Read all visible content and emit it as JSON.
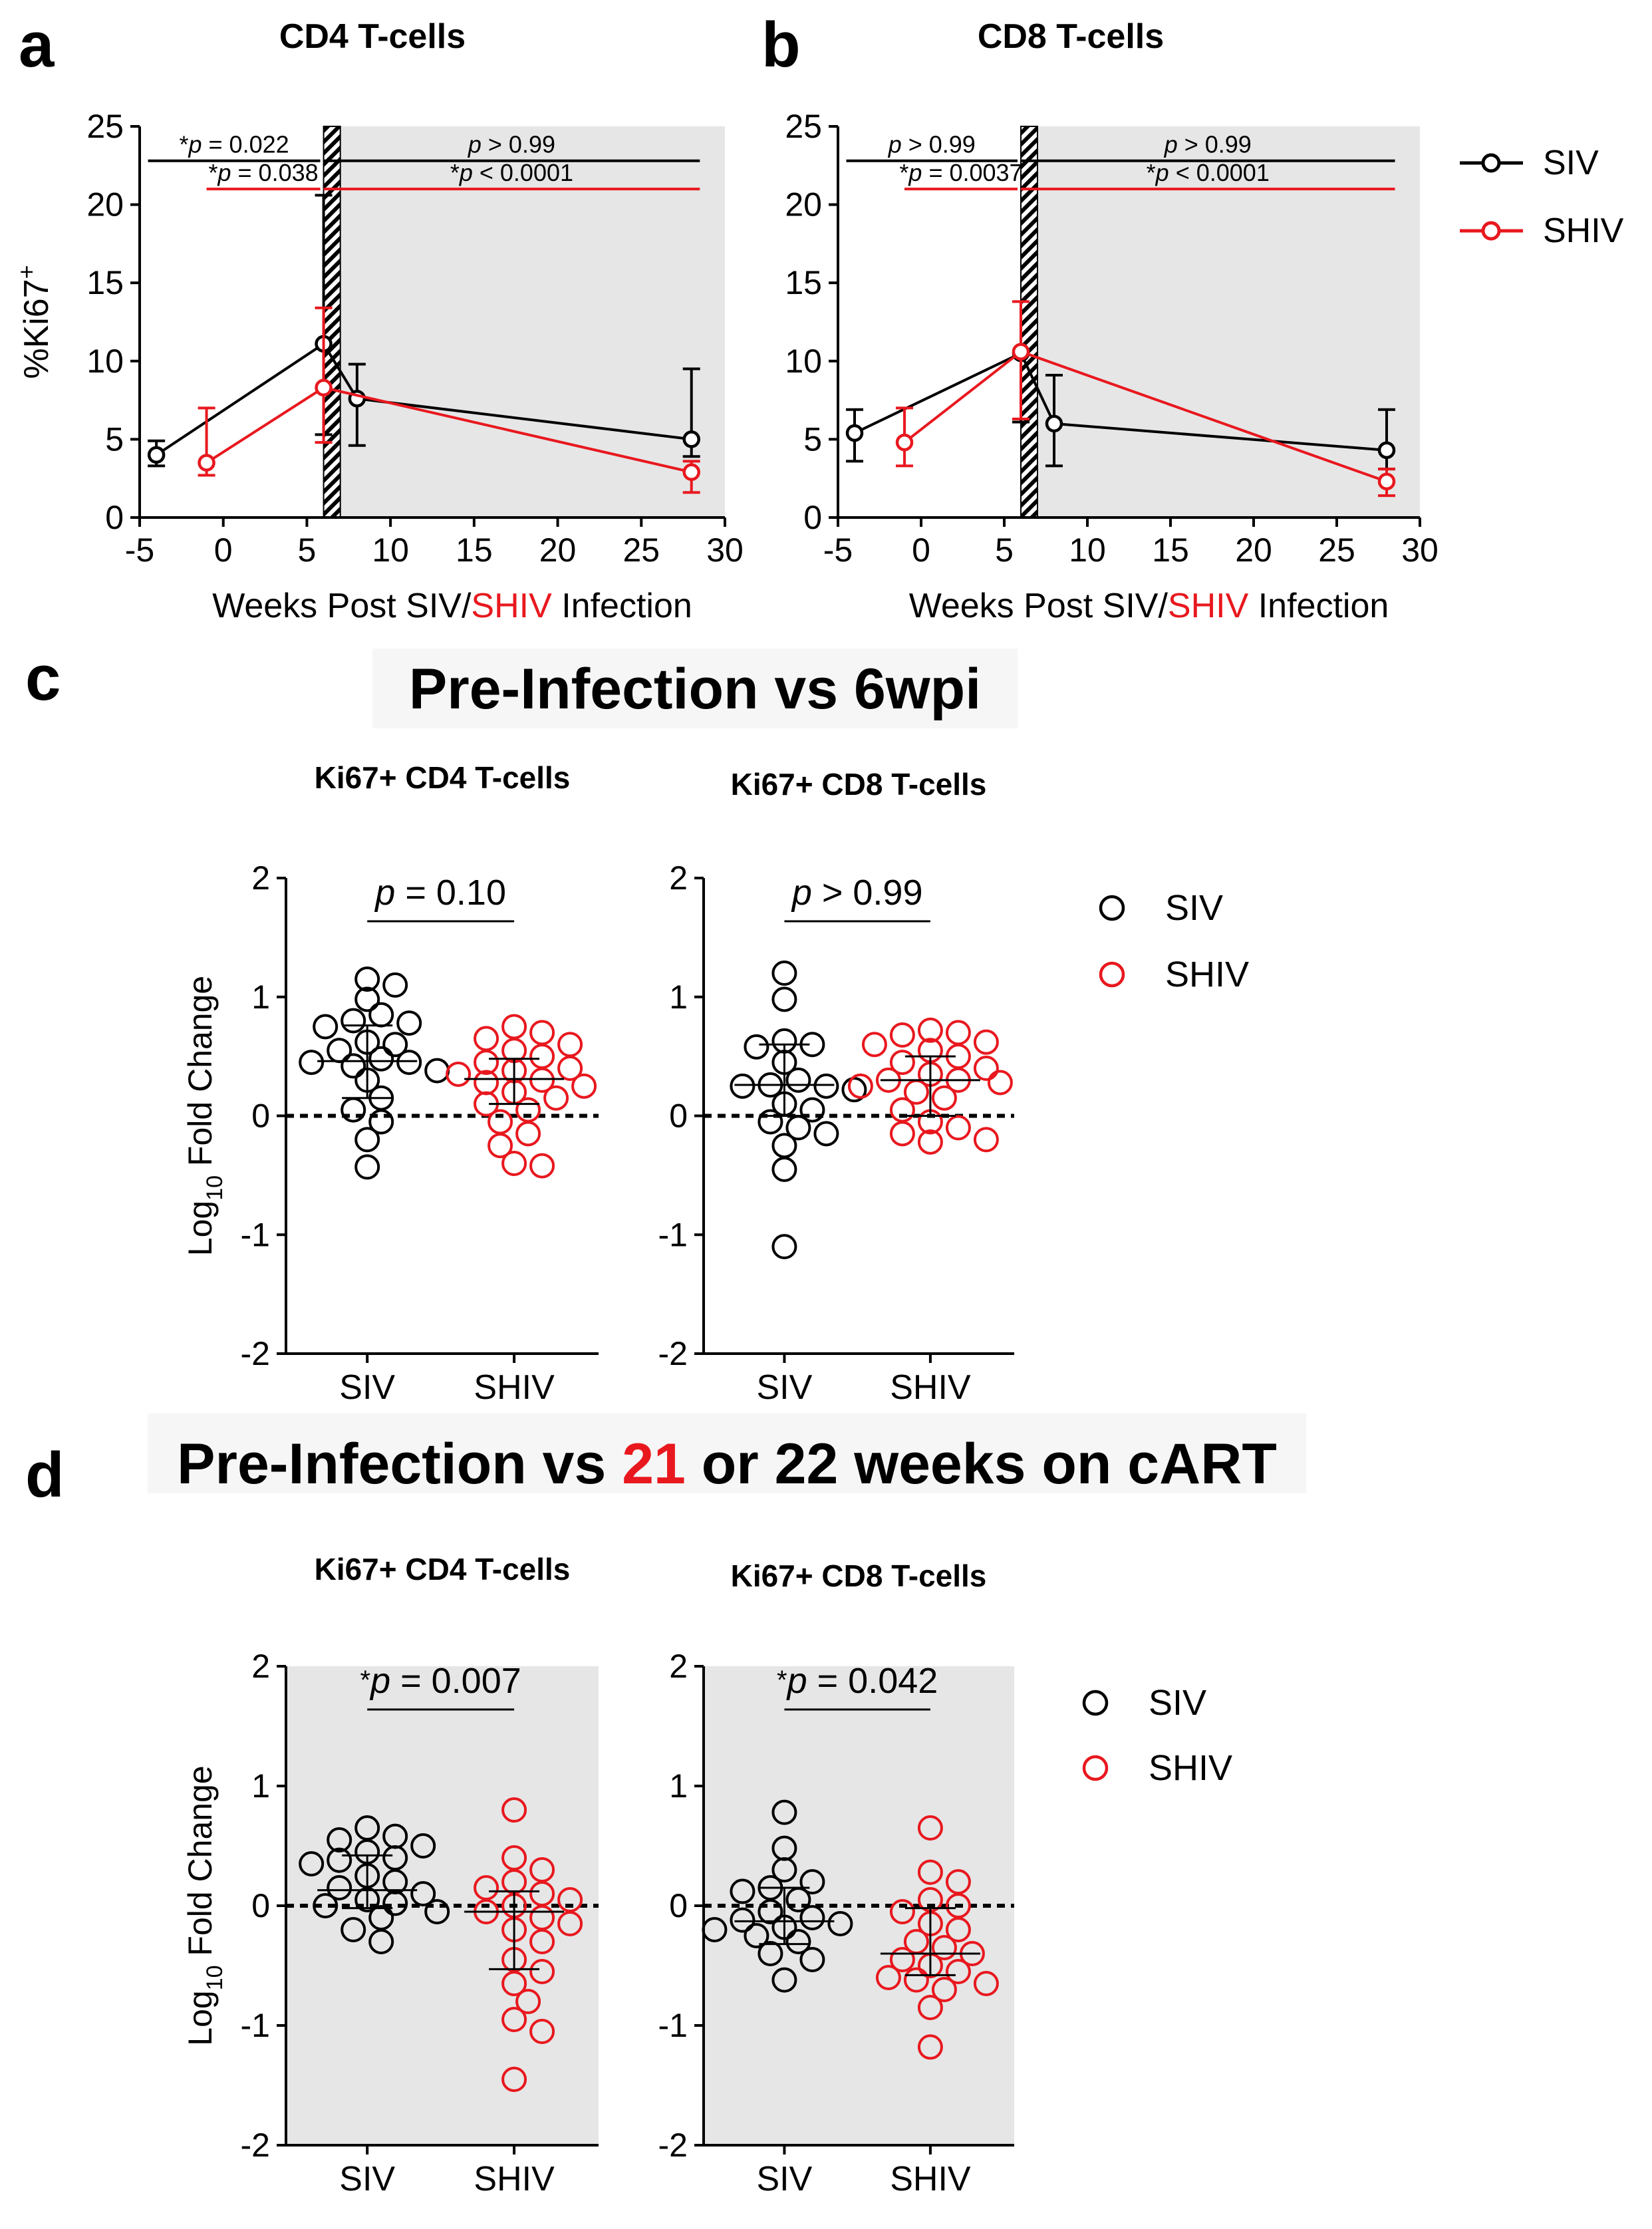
{
  "panel_letters": {
    "a": "a",
    "b": "b",
    "c": "c",
    "d": "d"
  },
  "colors": {
    "siv": "#000000",
    "shiv": "#e8181e",
    "shade": "#e6e6e6"
  },
  "legend": {
    "siv": "SIV",
    "shiv": "SHIV"
  },
  "xlabel_parts": {
    "pre": "Weeks Post SIV/",
    "red": "SHIV",
    "post": " Infection"
  },
  "ylabel_ab": {
    "base": "%Ki67",
    "sup": "+"
  },
  "ylabel_cd": {
    "base": "Log",
    "sub": "10",
    "rest": " Fold Change"
  },
  "section_c": {
    "title": "Pre-Infection vs 6wpi"
  },
  "section_d": {
    "pre": "Pre-Infection vs ",
    "red": "21",
    "post": " or 22 weeks on cART"
  },
  "chart_data": [
    {
      "id": "a",
      "type": "line",
      "title": "CD4 T-cells",
      "xlabel": "Weeks Post SIV/SHIV Infection",
      "ylabel": "%Ki67+",
      "xlim": [
        -5,
        30
      ],
      "ylim": [
        0,
        25
      ],
      "xticks": [
        -5,
        0,
        5,
        10,
        15,
        20,
        25,
        30
      ],
      "yticks": [
        0,
        5,
        10,
        15,
        20,
        25
      ],
      "shaded_from_x": 7,
      "hatched_x": [
        6,
        7
      ],
      "series": [
        {
          "name": "SIV",
          "x": [
            -4,
            6,
            8,
            28
          ],
          "y": [
            4.0,
            11.1,
            7.6,
            5.0
          ],
          "err_lo": [
            3.3,
            5.3,
            4.6,
            3.9
          ],
          "err_hi": [
            4.9,
            20.6,
            9.8,
            9.5
          ]
        },
        {
          "name": "SHIV",
          "x": [
            -1,
            6,
            28
          ],
          "y": [
            3.5,
            8.3,
            2.9
          ],
          "err_lo": [
            2.7,
            4.8,
            1.6
          ],
          "err_hi": [
            7.0,
            13.4,
            3.6
          ]
        }
      ],
      "annotations": [
        {
          "star": "*",
          "text": " = 0.022",
          "x1": -4.5,
          "x2": 5.8,
          "y": 22.8,
          "color": "siv"
        },
        {
          "star": "*",
          "text": " = 0.038",
          "x1": -1,
          "x2": 5.8,
          "y": 21.0,
          "color": "shiv"
        },
        {
          "star": "",
          "text": " > 0.99",
          "x1": 6,
          "x2": 28.5,
          "y": 22.8,
          "color": "siv"
        },
        {
          "star": "*",
          "text": " < 0.0001",
          "x1": 6,
          "x2": 28.5,
          "y": 21.0,
          "color": "shiv"
        }
      ]
    },
    {
      "id": "b",
      "type": "line",
      "title": "CD8 T-cells",
      "xlabel": "Weeks Post SIV/SHIV Infection",
      "ylabel": "",
      "xlim": [
        -5,
        30
      ],
      "ylim": [
        0,
        25
      ],
      "xticks": [
        -5,
        0,
        5,
        10,
        15,
        20,
        25,
        30
      ],
      "yticks": [
        0,
        5,
        10,
        15,
        20,
        25
      ],
      "shaded_from_x": 7,
      "hatched_x": [
        6,
        7
      ],
      "series": [
        {
          "name": "SIV",
          "x": [
            -4,
            6,
            8,
            28
          ],
          "y": [
            5.4,
            10.5,
            6.0,
            4.3
          ],
          "err_lo": [
            3.6,
            6.1,
            3.3,
            3.1
          ],
          "err_hi": [
            6.9,
            10.5,
            9.1,
            6.9
          ]
        },
        {
          "name": "SHIV",
          "x": [
            -1,
            6,
            28
          ],
          "y": [
            4.8,
            10.6,
            2.3
          ],
          "err_lo": [
            3.3,
            6.3,
            1.4
          ],
          "err_hi": [
            7.0,
            13.8,
            3.1
          ]
        }
      ],
      "annotations": [
        {
          "star": "",
          "text": " > 0.99",
          "x1": -4.5,
          "x2": 5.8,
          "y": 22.8,
          "color": "siv"
        },
        {
          "star": "*",
          "text": " = 0.0037",
          "x1": -1,
          "x2": 5.8,
          "y": 21.0,
          "color": "shiv"
        },
        {
          "star": "",
          "text": " > 0.99",
          "x1": 6,
          "x2": 28.5,
          "y": 22.8,
          "color": "siv"
        },
        {
          "star": "*",
          "text": " < 0.0001",
          "x1": 6,
          "x2": 28.5,
          "y": 21.0,
          "color": "shiv"
        }
      ]
    },
    {
      "id": "c1",
      "type": "scatter",
      "title": "Ki67+ CD4 T-cells",
      "categories": [
        "SIV",
        "SHIV"
      ],
      "ylim": [
        -2,
        2
      ],
      "yticks": [
        -2,
        -1,
        0,
        1,
        2
      ],
      "shaded": false,
      "pvalue": {
        "star": "",
        "text": " = 0.10"
      },
      "medians": [
        0.46,
        0.31
      ],
      "iqr": [
        [
          0.15,
          0.76
        ],
        [
          0.1,
          0.48
        ]
      ],
      "points": [
        [
          1.15,
          1.1,
          0.98,
          0.85,
          0.8,
          0.78,
          0.75,
          0.62,
          0.6,
          0.55,
          0.48,
          0.45,
          0.45,
          0.42,
          0.38,
          0.3,
          0.15,
          0.05,
          -0.05,
          -0.2,
          -0.43
        ],
        [
          0.75,
          0.7,
          0.65,
          0.6,
          0.55,
          0.5,
          0.45,
          0.4,
          0.38,
          0.35,
          0.3,
          0.28,
          0.25,
          0.2,
          0.15,
          0.1,
          0.05,
          -0.05,
          -0.15,
          -0.25,
          -0.4,
          -0.42
        ]
      ]
    },
    {
      "id": "c2",
      "type": "scatter",
      "title": "Ki67+ CD8 T-cells",
      "categories": [
        "SIV",
        "SHIV"
      ],
      "ylim": [
        -2,
        2
      ],
      "yticks": [
        -2,
        -1,
        0,
        1,
        2
      ],
      "shaded": false,
      "pvalue": {
        "star": "",
        "text": " > 0.99"
      },
      "medians": [
        0.26,
        0.3
      ],
      "iqr": [
        [
          0.0,
          0.6
        ],
        [
          0.0,
          0.5
        ]
      ],
      "points": [
        [
          1.2,
          0.98,
          0.63,
          0.6,
          0.58,
          0.45,
          0.3,
          0.26,
          0.25,
          0.25,
          0.22,
          0.1,
          0.05,
          -0.05,
          -0.1,
          -0.15,
          -0.25,
          -0.45,
          -1.1
        ],
        [
          0.72,
          0.7,
          0.68,
          0.62,
          0.6,
          0.55,
          0.5,
          0.45,
          0.4,
          0.35,
          0.3,
          0.3,
          0.28,
          0.25,
          0.2,
          0.15,
          0.05,
          -0.05,
          -0.1,
          -0.15,
          -0.2,
          -0.22
        ]
      ]
    },
    {
      "id": "d1",
      "type": "scatter",
      "title": "Ki67+ CD4 T-cells",
      "categories": [
        "SIV",
        "SHIV"
      ],
      "ylim": [
        -2,
        2
      ],
      "yticks": [
        -2,
        -1,
        0,
        1,
        2
      ],
      "shaded": true,
      "pvalue": {
        "star": "*",
        "text": " = 0.007"
      },
      "medians": [
        0.13,
        -0.05
      ],
      "iqr": [
        [
          -0.02,
          0.42
        ],
        [
          -0.53,
          0.12
        ]
      ],
      "points": [
        [
          0.65,
          0.58,
          0.55,
          0.5,
          0.45,
          0.4,
          0.38,
          0.35,
          0.25,
          0.2,
          0.15,
          0.1,
          0.05,
          0.02,
          0.0,
          -0.05,
          -0.1,
          -0.2,
          -0.3
        ],
        [
          0.8,
          0.4,
          0.3,
          0.2,
          0.15,
          0.1,
          0.05,
          0.0,
          -0.05,
          -0.1,
          -0.15,
          -0.2,
          -0.3,
          -0.45,
          -0.55,
          -0.65,
          -0.8,
          -0.95,
          -1.05,
          -1.45
        ]
      ]
    },
    {
      "id": "d2",
      "type": "scatter",
      "title": "Ki67+ CD8 T-cells",
      "categories": [
        "SIV",
        "SHIV"
      ],
      "ylim": [
        -2,
        2
      ],
      "yticks": [
        -2,
        -1,
        0,
        1,
        2
      ],
      "shaded": true,
      "pvalue": {
        "star": "*",
        "text": " = 0.042"
      },
      "medians": [
        -0.13,
        -0.4
      ],
      "iqr": [
        [
          -0.32,
          0.15
        ],
        [
          -0.58,
          -0.02
        ]
      ],
      "points": [
        [
          0.78,
          0.48,
          0.3,
          0.2,
          0.15,
          0.12,
          0.05,
          -0.05,
          -0.1,
          -0.12,
          -0.15,
          -0.18,
          -0.2,
          -0.25,
          -0.3,
          -0.4,
          -0.45,
          -0.62
        ],
        [
          0.65,
          0.28,
          0.2,
          0.05,
          0.0,
          -0.05,
          -0.15,
          -0.2,
          -0.3,
          -0.35,
          -0.4,
          -0.45,
          -0.5,
          -0.55,
          -0.6,
          -0.62,
          -0.65,
          -0.7,
          -0.85,
          -1.18
        ]
      ]
    }
  ]
}
